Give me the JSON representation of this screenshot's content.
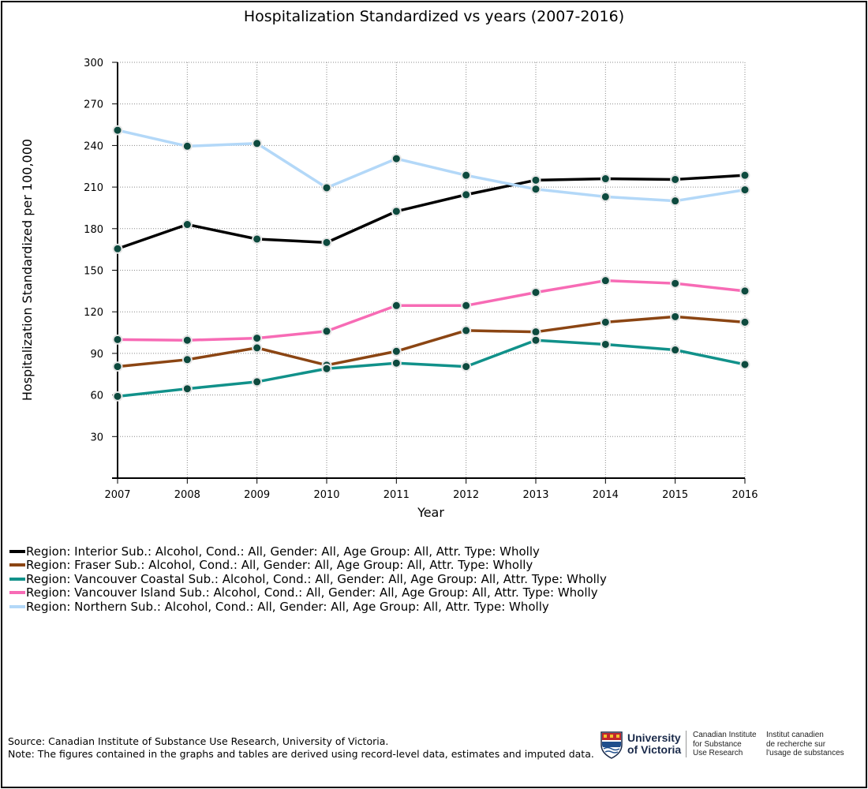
{
  "title": "Hospitalization Standardized vs years (2007-2016)",
  "chart_data": {
    "type": "line",
    "title": "Hospitalization Standardized vs years (2007-2016)",
    "xlabel": "Year",
    "ylabel": "Hospitalization Standardized per 100,000",
    "x": [
      2007,
      2008,
      2009,
      2010,
      2011,
      2012,
      2013,
      2014,
      2015,
      2016
    ],
    "ylim": [
      0,
      300
    ],
    "yticks": [
      30,
      60,
      90,
      120,
      150,
      180,
      210,
      240,
      270,
      300
    ],
    "grid": true,
    "legend_position": "bottom",
    "series": [
      {
        "name": "Region: Interior Sub.: Alcohol, Cond.: All, Gender: All, Age Group: All, Attr. Type: Wholly",
        "color": "#000000",
        "values": [
          165.5,
          183,
          172.5,
          170,
          192.5,
          204.5,
          215,
          216,
          215.5,
          218.5
        ]
      },
      {
        "name": "Region: Fraser Sub.: Alcohol, Cond.: All, Gender: All, Age Group: All, Attr. Type: Wholly",
        "color": "#8b4513",
        "values": [
          80.5,
          85.5,
          94,
          81.5,
          91.5,
          106.5,
          105.5,
          112.5,
          116.5,
          112.5
        ]
      },
      {
        "name": "Region: Vancouver Coastal Sub.: Alcohol, Cond.: All, Gender: All, Age Group: All, Attr. Type: Wholly",
        "color": "#11918a",
        "values": [
          59,
          64.5,
          69.5,
          79,
          83,
          80.5,
          99.5,
          96.5,
          92.5,
          82
        ]
      },
      {
        "name": "Region: Vancouver Island Sub.: Alcohol, Cond.: All, Gender: All, Age Group: All, Attr. Type: Wholly",
        "color": "#f76bb5",
        "values": [
          100,
          99.5,
          101,
          106,
          124.5,
          124.5,
          134,
          142.5,
          140.5,
          135
        ]
      },
      {
        "name": "Region: Northern Sub.: Alcohol, Cond.: All, Gender: All, Age Group: All, Attr. Type: Wholly",
        "color": "#b3d8f8",
        "values": [
          251,
          239.5,
          241.5,
          209.5,
          230.5,
          218.5,
          208.5,
          203,
          200,
          208
        ]
      }
    ]
  },
  "footer": {
    "source": "Source: Canadian Institute of Substance Use Research, University of Victoria.",
    "note": "Note: The figures contained in the graphs and tables are derived using record-level data, estimates and imputed data."
  },
  "logo": {
    "university_line1": "University",
    "university_line2": "of Victoria",
    "org_en_line1": "Canadian Institute",
    "org_en_line2": "for Substance",
    "org_en_line3": "Use Research",
    "org_fr_line1": "Institut canadien",
    "org_fr_line2": "de recherche sur",
    "org_fr_line3": "l'usage de substances"
  }
}
